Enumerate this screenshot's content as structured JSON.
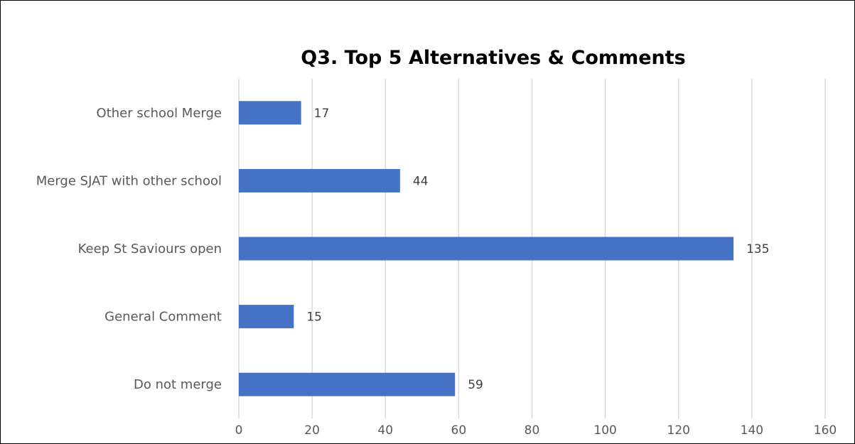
{
  "chart_data": {
    "type": "bar",
    "orientation": "horizontal",
    "title": "Q3. Top 5 Alternatives & Comments",
    "xlabel": "",
    "ylabel": "",
    "categories": [
      "Other school Merge",
      "Merge SJAT with other school",
      "Keep St Saviours open",
      "General Comment",
      "Do not merge"
    ],
    "values": [
      17,
      44,
      135,
      15,
      59
    ],
    "xlim": [
      0,
      160
    ],
    "xticks": [
      "0",
      "20",
      "40",
      "60",
      "80",
      "100",
      "120",
      "140",
      "160"
    ],
    "grid": "vertical",
    "legend": "none",
    "bar_color": "#4472c4",
    "data_labels": [
      "17",
      "44",
      "135",
      "15",
      "59"
    ]
  }
}
